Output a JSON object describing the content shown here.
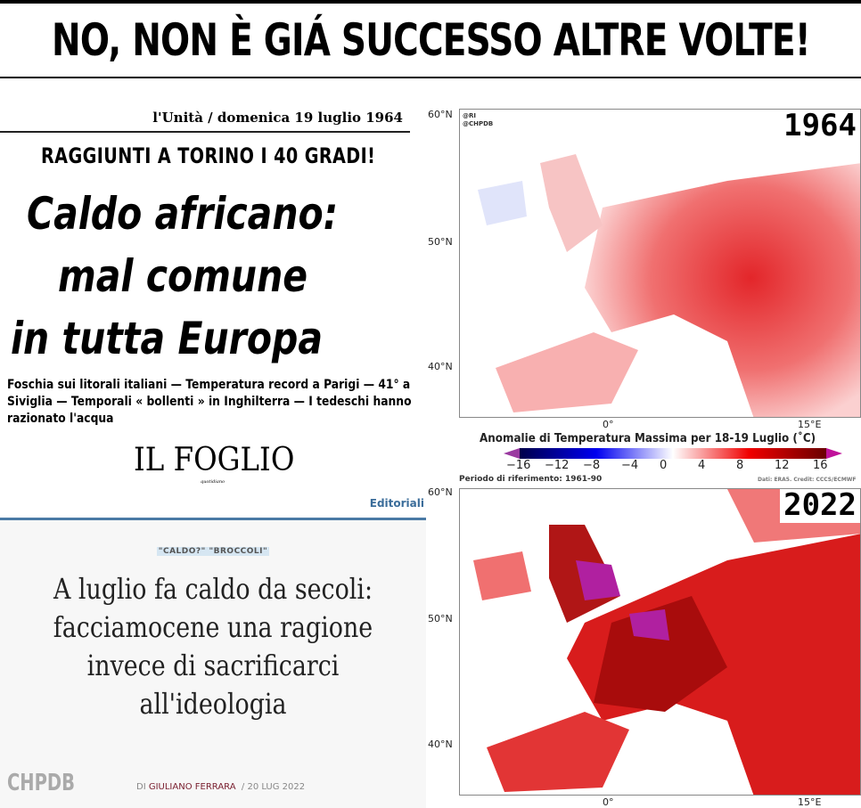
{
  "title": "NO, NON È GIÁ SUCCESSO ALTRE VOLTE!",
  "clipping": {
    "masthead": "l'Unità / domenica 19 luglio 1964",
    "kicker": "RAGGIUNTI A TORINO I 40 GRADI!",
    "headline": [
      "Caldo africano:",
      "mal comune",
      "in tutta Europa"
    ],
    "deck": "Foschia sui litorali italiani — Temperatura record a Parigi — 41° a Siviglia — Temporali « bollenti » in Inghilterra — I tedeschi hanno razionato l'acqua"
  },
  "foglio": {
    "logo": "IL FOGLIO",
    "logo_sub": "quotidiano",
    "nav_section": "Editoriali",
    "tag": "\"CALDO?\" \"BROCCOLI\"",
    "headline": [
      "A luglio fa caldo da secoli:",
      "facciamocene una ragione",
      "invece di sacrificarci",
      "all'ideologia"
    ],
    "by_prefix": "DI",
    "author": "GIULIANO FERRARA",
    "date": "/ 20 LUG 2022",
    "watermark": "CHPDB"
  },
  "maps": {
    "credits": [
      "@RI",
      "@CHPDB"
    ],
    "lat_labels": [
      "60°N",
      "50°N",
      "40°N"
    ],
    "lon_labels": [
      "0°",
      "15°E"
    ],
    "map1_year": "1964",
    "map2_year": "2022",
    "colorbar_title": "Anomalie di Temperatura Massima per 18-19 Luglio (˚C)",
    "colorbar_ticks": [
      "−16",
      "−12",
      "−8",
      "−4",
      "0",
      "4",
      "8",
      "12",
      "16"
    ],
    "reference": "Periodo di riferimento: 1961-90",
    "source": "Dati: ERA5. Credit: CCCS/ECMWF",
    "colors": {
      "cold": "#00005a",
      "neutral": "#ffffff",
      "hot": "#a00000",
      "extreme": "#c0129a"
    }
  }
}
